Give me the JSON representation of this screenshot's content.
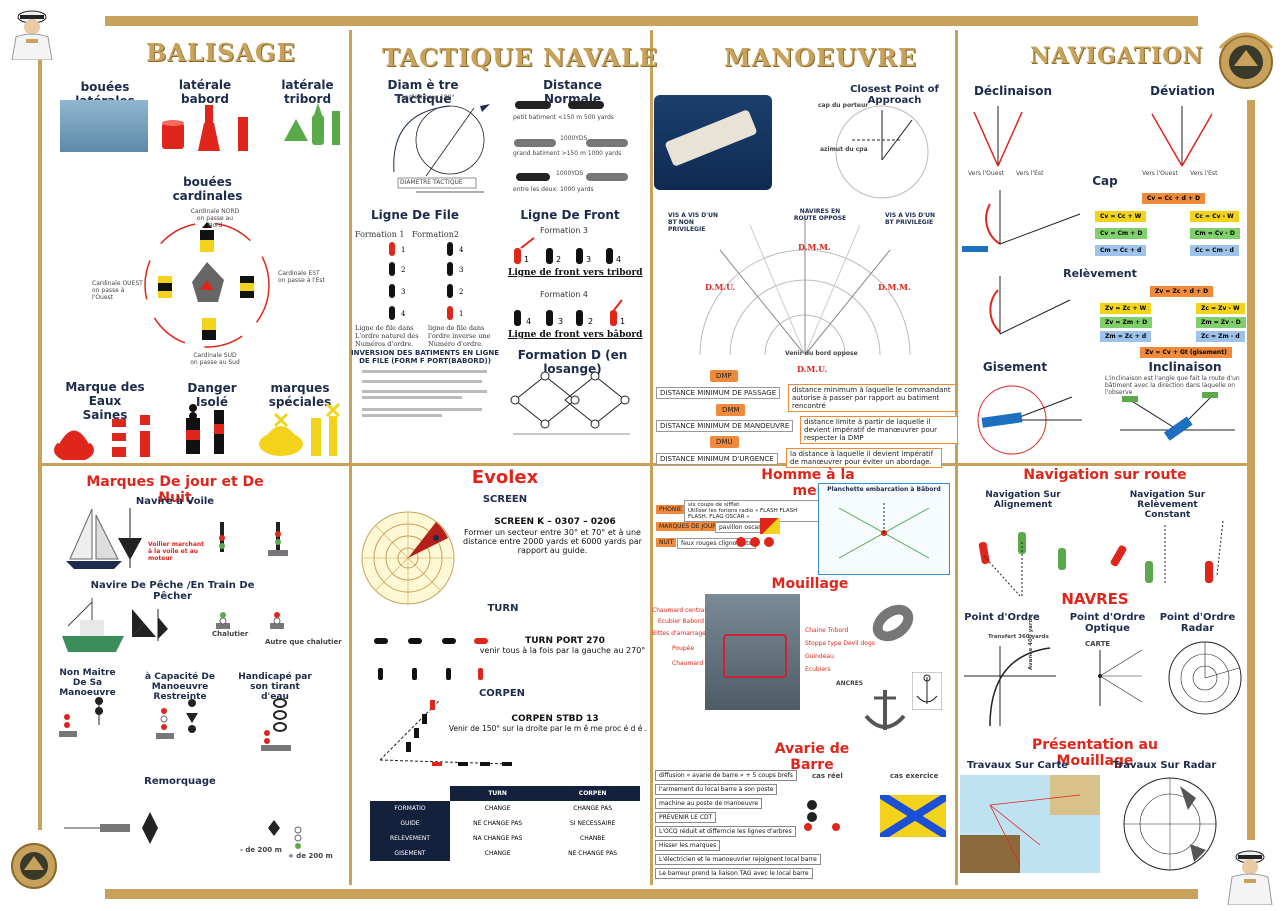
{
  "sections": {
    "balisage": "BALISAGE",
    "tactique": "TACTIQUE NAVALE",
    "manoeuvre": "MANOEUVRE",
    "navigation": "NAVIGATION"
  },
  "balisage": {
    "laterales": "bouées latérales",
    "babord": "latérale babord",
    "tribord": "latérale tribord",
    "cardinales": "bouées cardinales",
    "card_nord": "Cardinale NORD\non passe au Nord",
    "card_est": "Cardinale EST\non passe à l'Est",
    "card_ouest": "Cardinale OUEST\non passe à l'Ouest",
    "card_sud": "Cardinale SUD\non passe au Sud",
    "eaux_saines": "Marque des Eaux\nSaines",
    "danger": "Danger Isolé",
    "speciales": "marques spéciales"
  },
  "tactique": {
    "diametre": "Diam è tre Tactique",
    "transfert": "Transfert pour 180°",
    "avance": "AVANCE",
    "diametre_label": "DIAMETRE TACTIQUE",
    "distance_normale": "Distance Normale",
    "dist1": "petit batiment <150 m 500 yards",
    "dist2": "grand batiment >150 m 1000 yards",
    "dist3": "entre les deux: 1000 yards",
    "yds": "1000YDS",
    "ligne_file": "Ligne De File",
    "formation1": "Formation 1",
    "formation2": "Formation2",
    "file1": "Ligne de file dans L'ordre naturel des Numéros d'ordre.",
    "file2": "ligne de file dans l'ordre inverse une Numéro d'ordre.",
    "ligne_front": "Ligne De Front",
    "formation3": "Formation 3",
    "front_tribord": "Ligne de front vers tribord",
    "formation4": "Formation 4",
    "front_babord": "Ligne de front vers bâbord",
    "inversion": "INVERSION DES BATIMENTS EN LIGNE DE FILE (FORM F PORT(BABORD))",
    "losange": "Formation D (en losange)"
  },
  "manoeuvre": {
    "cpa": "Closest Point of Approach",
    "cap_porteur": "cap du porteur",
    "azimut": "azimut du cpa",
    "dmp": "DMP",
    "dmp_full": "DISTANCE MINIMUM DE PASSAGE",
    "dmp_desc": "distance minimum à laquelle le commandant autorise à passer par rapport au batiment rencontré",
    "dmm": "DMM",
    "dmm_full": "DISTANCE MINIMUM DE MANOEUVRE",
    "dmm_desc": "distance limite à partir de laquelle il devient impératif de manœuvrer pour respecter la DMP",
    "dmu": "DMU",
    "dmu_full": "DISTANCE MINIMUM D'URGENCE",
    "dmu_desc": "la distance à laquelle il devient impératif de manœuvrer pour éviter un abordage.",
    "vis_left": "VIS A VIS D'UN BT NON PRIVILEGIE",
    "vis_right": "VIS A VIS D'UN BT PRIVILEGIE",
    "navires_oppose": "NAVIRES EN ROUTE OPPOSE",
    "dmm_label": "D.M.M.",
    "dmu_label": "D.M.U.",
    "venir_bord": "Venir du bord oppose"
  },
  "navigation": {
    "declinaison": "Déclinaison",
    "deviation": "Déviation",
    "cap": "Cap",
    "releve": "Relèvement",
    "gisement": "Gisement",
    "inclinaison": "Inclinaison",
    "inclinaison_desc": "L'inclinaison est l'angle que fait la route d'un bâtiment avec la direction dans laquelle on l'observe",
    "f_cv": "Cv = Cc + d + D",
    "f1": "Cv = Cc + W",
    "f2": "Cc = Cv - W",
    "f3": "Cv = Cm + D",
    "f4": "Cm = Cv - D",
    "f5": "Cm = Cc + d",
    "f6": "Cc = Cm - d",
    "f_zv": "Zv = Zc + d + D",
    "z1": "Zv = Zc + W",
    "z2": "Zc = Zv - W",
    "z3": "Zv = Zm + D",
    "z4": "Zm = Zv - D",
    "z5": "Zm = Zc + d",
    "z6": "Zc = Zm - d",
    "zgis": "Zv = Cv + Gt (gisement)",
    "vers_ouest": "Vers l'Ouest",
    "vers_est": "Vers l'Est"
  },
  "marques": {
    "title": "Marques De jour et De Nuit",
    "voile": "Navire à Voile",
    "voile_note": "Voilier marchant à la voile et au moteur",
    "peche": "Navire De Pêche /En Train De Pêcher",
    "chalutier": "Chalutier",
    "autre": "Autre que chalutier",
    "non_maitre": "Non Maitre\nDe Sa Manoeuvre",
    "capacite": "à Capacité De Manoeuvre\nRestreinte",
    "handicape": "Handicapé par\nson tirant d'eau",
    "remorquage": "Remorquage",
    "m200a": "- de 200 m",
    "m200b": "+ de 200 m"
  },
  "evolex": {
    "title": "Evolex",
    "screen": "SCREEN",
    "screen_k": "SCREEN K – 0307 – 0206",
    "screen_desc": "Former un secteur entre 30° et 70° et à une distance entre 2000 yards et 6000 yards par rapport au guide.",
    "turn": "TURN",
    "turn_port": "TURN PORT 270",
    "turn_desc": "venir tous à la fois par la gauche au 270°",
    "corpen": "CORPEN",
    "corpen_stbd": "CORPEN STBD 13",
    "corpen_desc": "Venir de 150° sur la droite par le m ê me proc é d é .",
    "table_head": [
      "",
      "TURN",
      "CORPEN"
    ],
    "table_rows": [
      [
        "FORMATIO",
        "CHANGE",
        "CHANGE PAS"
      ],
      [
        "GUIDE",
        "NE CHANGE PAS",
        "SI NECESSAIRE"
      ],
      [
        "RELEVEMENT",
        "NA CHANGE PAS",
        "CHANBE"
      ],
      [
        "GISEMENT",
        "CHANGE",
        "NE CHANGE PAS"
      ]
    ]
  },
  "homme": {
    "title": "Homme à la mer",
    "phonie": "PHONIE",
    "phonie_desc": "six coups de sifflet\nUtiliser les forions radio « FLASH FLASH FLASH, FLAG OSCAR »",
    "marques_jour": "MARQUES DE JOUR",
    "pavillon": "pavillon oscar",
    "nuit": "NUIT",
    "feux": "feux rouges clignotants",
    "planche": "Planchette embarcation à Bâbord"
  },
  "mouillage": {
    "title": "Mouillage",
    "labels": [
      "Chaumard central",
      "Ecubier Babord",
      "Bittes d'amarrage",
      "Poupée",
      "Chaumard"
    ],
    "labels_r": [
      "Chaine Tribord",
      "Stoppe type Devil dogs",
      "Guindeau",
      "Ecubiers"
    ],
    "ancres": "ANCRES"
  },
  "avarie": {
    "title": "Avarie de Barre",
    "items": [
      "diffusion « avarie de barre » + 5 coups brefs",
      "l'armement du local barre à son poste",
      "machine au poste de manoeuvre",
      "PREVENIR LE CDT",
      "L'OCQ réduit et differncie les lignes d'arbres",
      "Hisser les marques",
      "L'électricien et le manoeuvrier rejoignent local barre",
      "Le barreur prend la liaison TAG avec le local barre"
    ],
    "reel": "cas réel",
    "exercice": "cas exercice"
  },
  "navroute": {
    "title": "Navigation sur route",
    "alignement": "Navigation Sur Alignement",
    "releve_constant": "Navigation Sur Relèvement\nConstant",
    "navres": "NAVRES",
    "point_ordre": "Point d'Ordre",
    "point_optique": "Point d'Ordre\nOptique",
    "point_radar": "Point d'Ordre\nRadar",
    "presentation": "Présentation au Mouillage",
    "travaux_carte": "Travaux Sur Carte",
    "travaux_radar": "Travaux Sur Radar",
    "carte": "CARTE",
    "transfert": "Transfert 360 yards",
    "avance": "Avance 400 yards"
  },
  "colors": {
    "gold": "#c8a25a",
    "navy": "#1d2c4d",
    "red": "#e0261b",
    "green": "#5aaa4a",
    "orange": "#ef8a3c"
  }
}
